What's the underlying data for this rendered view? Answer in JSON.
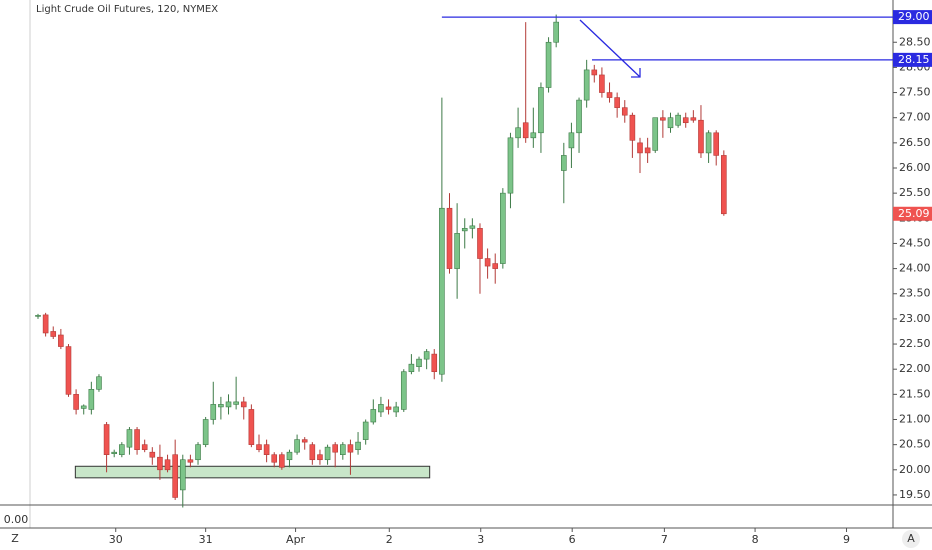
{
  "chart_data": {
    "type": "candlestick",
    "title": "Light Crude Oil Futures, 120, NYMEX",
    "series": {
      "up_color": "#7cc489",
      "down_color": "#ef5350",
      "open": [
        23.05,
        23.08,
        22.75,
        22.68,
        22.45,
        21.5,
        21.22,
        21.2,
        21.6,
        20.9,
        20.32,
        20.3,
        20.45,
        20.8,
        20.5,
        20.35,
        20.25,
        20.2,
        20.3,
        19.6,
        20.2,
        20.2,
        20.5,
        21.0,
        21.25,
        21.25,
        21.3,
        21.35,
        21.2,
        20.5,
        20.5,
        20.3,
        20.3,
        20.2,
        20.35,
        20.6,
        20.5,
        20.3,
        20.2,
        20.5,
        20.3,
        20.5,
        20.4,
        20.6,
        20.95,
        21.15,
        21.25,
        21.15,
        21.2,
        21.95,
        22.05,
        22.2,
        22.3,
        21.9,
        25.2,
        24.0,
        24.75,
        24.8,
        24.8,
        24.2,
        24.1,
        24.1,
        25.5,
        26.6,
        26.9,
        26.6,
        26.7,
        27.6,
        28.5,
        25.95,
        26.4,
        26.7,
        27.35,
        27.95,
        27.85,
        27.5,
        27.4,
        27.2,
        27.05,
        26.5,
        26.4,
        26.35,
        27.0,
        26.8,
        26.85,
        27.0,
        27.0,
        26.95,
        26.3,
        26.7,
        26.25
      ],
      "high": [
        23.1,
        23.12,
        22.85,
        22.8,
        22.5,
        21.6,
        21.3,
        21.75,
        21.9,
        20.95,
        20.4,
        20.55,
        20.85,
        20.85,
        20.6,
        20.45,
        20.5,
        20.3,
        20.6,
        20.3,
        20.3,
        20.55,
        21.05,
        21.75,
        21.45,
        21.5,
        21.85,
        21.45,
        21.3,
        20.7,
        20.6,
        20.35,
        20.35,
        20.4,
        20.7,
        20.65,
        20.55,
        20.4,
        20.5,
        20.55,
        20.55,
        20.6,
        20.75,
        21.0,
        21.4,
        21.45,
        21.4,
        21.35,
        22.0,
        22.3,
        22.25,
        22.4,
        22.4,
        27.4,
        25.5,
        25.3,
        25.0,
        25.0,
        24.9,
        24.4,
        24.3,
        25.6,
        26.7,
        27.2,
        28.9,
        27.2,
        27.7,
        28.6,
        29.05,
        26.5,
        26.9,
        27.4,
        28.15,
        28.05,
        28.0,
        27.7,
        27.5,
        27.35,
        27.1,
        26.6,
        26.6,
        27.0,
        27.15,
        27.1,
        27.1,
        27.1,
        27.15,
        27.25,
        26.75,
        26.75,
        26.35
      ],
      "low": [
        23.0,
        22.65,
        22.6,
        22.4,
        21.45,
        21.1,
        21.1,
        21.1,
        21.55,
        19.95,
        20.25,
        20.25,
        20.3,
        20.3,
        20.35,
        20.1,
        19.8,
        19.95,
        19.4,
        19.25,
        20.05,
        20.1,
        20.45,
        20.9,
        21.0,
        21.1,
        21.2,
        21.0,
        20.45,
        20.35,
        20.15,
        20.05,
        20.0,
        20.05,
        20.3,
        20.4,
        20.1,
        20.1,
        20.1,
        20.05,
        20.2,
        19.9,
        20.3,
        20.5,
        20.9,
        21.05,
        21.1,
        21.05,
        21.15,
        21.9,
        21.95,
        22.0,
        21.8,
        21.75,
        23.9,
        23.4,
        24.4,
        24.6,
        23.5,
        23.8,
        23.7,
        24.0,
        25.2,
        26.4,
        26.5,
        26.4,
        26.3,
        27.5,
        28.4,
        25.3,
        26.0,
        26.3,
        27.2,
        27.7,
        27.4,
        27.3,
        27.0,
        26.9,
        26.2,
        25.9,
        26.1,
        26.3,
        26.6,
        26.7,
        26.8,
        26.8,
        26.9,
        26.2,
        26.1,
        26.05,
        25.05
      ],
      "close": [
        23.07,
        22.72,
        22.65,
        22.45,
        21.5,
        21.2,
        21.27,
        21.6,
        21.85,
        20.3,
        20.35,
        20.5,
        20.8,
        20.4,
        20.4,
        20.25,
        20.0,
        20.0,
        19.45,
        20.2,
        20.15,
        20.5,
        21.0,
        21.3,
        21.3,
        21.35,
        21.35,
        21.25,
        20.5,
        20.4,
        20.3,
        20.15,
        20.05,
        20.35,
        20.6,
        20.55,
        20.2,
        20.2,
        20.45,
        20.35,
        20.5,
        20.35,
        20.55,
        20.95,
        21.2,
        21.3,
        21.2,
        21.25,
        21.95,
        22.1,
        22.2,
        22.35,
        21.95,
        25.2,
        24.0,
        24.7,
        24.8,
        24.85,
        24.2,
        24.05,
        24.0,
        25.5,
        26.6,
        26.8,
        26.6,
        26.7,
        27.6,
        28.5,
        28.9,
        26.25,
        26.7,
        27.35,
        27.95,
        27.85,
        27.5,
        27.4,
        27.2,
        27.05,
        26.55,
        26.3,
        26.3,
        27.0,
        26.95,
        27.0,
        27.05,
        26.9,
        26.95,
        26.3,
        26.7,
        26.25,
        25.09
      ]
    },
    "ylim": [
      19.3,
      29.34
    ],
    "yticks": [
      {
        "value": 19.5,
        "label": "19.50"
      },
      {
        "value": 20,
        "label": "20.00"
      },
      {
        "value": 20.5,
        "label": "20.50"
      },
      {
        "value": 21,
        "label": "21.00"
      },
      {
        "value": 21.5,
        "label": "21.50"
      },
      {
        "value": 22,
        "label": "22.00"
      },
      {
        "value": 22.5,
        "label": "22.50"
      },
      {
        "value": 23,
        "label": "23.00"
      },
      {
        "value": 23.5,
        "label": "23.50"
      },
      {
        "value": 24,
        "label": "24.00"
      },
      {
        "value": 24.5,
        "label": "24.50"
      },
      {
        "value": 25,
        "label": "25.00"
      },
      {
        "value": 25.5,
        "label": "25.50"
      },
      {
        "value": 26,
        "label": "26.00"
      },
      {
        "value": 26.5,
        "label": "26.50"
      },
      {
        "value": 27,
        "label": "27.00"
      },
      {
        "value": 27.5,
        "label": "27.50"
      },
      {
        "value": 28,
        "label": "28.00"
      },
      {
        "value": 28.5,
        "label": "28.50"
      }
    ],
    "xlim": [
      -1.05,
      112.2
    ],
    "xticks": [
      {
        "value": 10.2,
        "label": "30"
      },
      {
        "value": 22.0,
        "label": "31"
      },
      {
        "value": 33.8,
        "label": "Apr"
      },
      {
        "value": 46.1,
        "label": "2"
      },
      {
        "value": 58.1,
        "label": "3"
      },
      {
        "value": 70.1,
        "label": "6"
      },
      {
        "value": 82.2,
        "label": "7"
      },
      {
        "value": 94.1,
        "label": "8"
      },
      {
        "value": 106.1,
        "label": "9"
      }
    ],
    "levels": [
      {
        "value": 29,
        "label": "29.00"
      },
      {
        "value": 28.15,
        "label": "28.15"
      }
    ],
    "zone": {
      "top": 20.07,
      "bottom": 19.84
    },
    "subpane_label": "0.00",
    "left_button": "Z",
    "right_button": "A"
  }
}
